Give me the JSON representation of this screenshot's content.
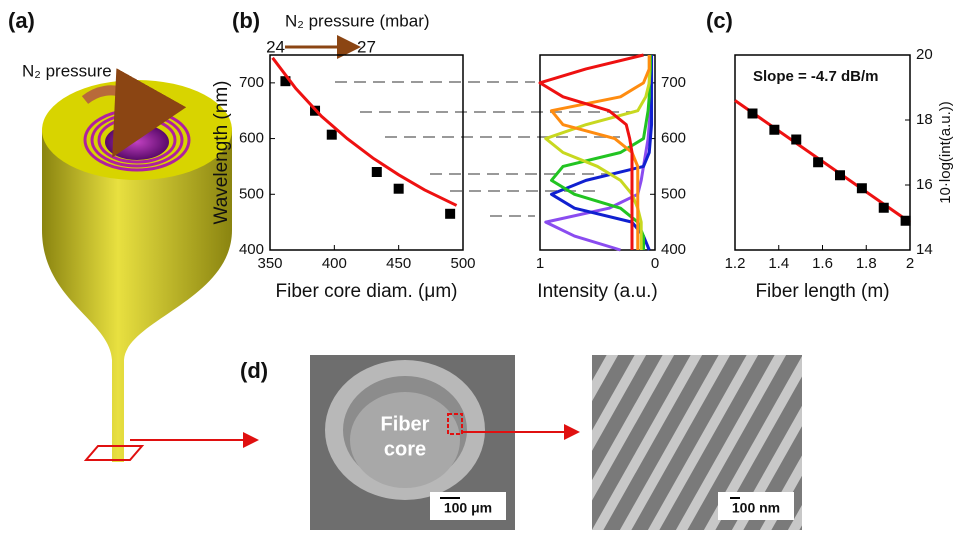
{
  "labels": {
    "panel_a": "(a)",
    "panel_b": "(b)",
    "panel_c": "(c)",
    "panel_d": "(d)",
    "pressure": "N₂ pressure",
    "fiber_core": "Fiber",
    "fiber_core_2": "core",
    "scale_um": "100 μm",
    "scale_nm": "100 nm"
  },
  "chart_data": [
    {
      "type": "scatter",
      "xlabel": "Fiber core diam. (μm)",
      "ylabel": "Wavelength (nm)",
      "annotations": [
        "N₂ pressure (mbar)",
        "24",
        "27"
      ],
      "xlim": [
        350,
        500
      ],
      "xticks": [
        350,
        400,
        450,
        500
      ],
      "ylim": [
        400,
        750
      ],
      "yticks": [
        400,
        500,
        600,
        700
      ],
      "series": [
        {
          "marker": "square",
          "color": "#000000",
          "x": [
            362,
            385,
            398,
            433,
            450,
            490
          ],
          "values": [
            703,
            650,
            607,
            540,
            510,
            465
          ]
        },
        {
          "marker": "line",
          "color": "#ee1111",
          "x": [
            352,
            370,
            390,
            410,
            430,
            450,
            470,
            495
          ],
          "values": [
            745,
            690,
            640,
            600,
            565,
            535,
            508,
            480
          ]
        }
      ]
    },
    {
      "type": "line",
      "xlabel": "Intensity (a.u.)",
      "xlim": [
        1,
        0
      ],
      "xticks": [
        1,
        0
      ],
      "ylim": [
        400,
        750
      ],
      "yticks": [
        400,
        500,
        600,
        700
      ],
      "y": [
        400,
        425,
        450,
        475,
        500,
        525,
        550,
        575,
        600,
        625,
        650,
        675,
        700,
        725,
        750
      ],
      "series": [
        {
          "color": "#8a4cf0",
          "values": [
            0.3,
            0.7,
            0.95,
            0.4,
            0.15,
            0.12,
            0.1,
            0.08,
            0.06,
            0.05,
            0.04,
            0.04,
            0.04,
            0.04,
            0.04
          ]
        },
        {
          "color": "#1020d0",
          "values": [
            0.05,
            0.1,
            0.2,
            0.7,
            0.9,
            0.6,
            0.1,
            0.05,
            0.04,
            0.03,
            0.03,
            0.03,
            0.03,
            0.03,
            0.03
          ]
        },
        {
          "color": "#22c422",
          "values": [
            0.1,
            0.1,
            0.15,
            0.3,
            0.7,
            0.9,
            0.8,
            0.3,
            0.1,
            0.08,
            0.06,
            0.05,
            0.05,
            0.04,
            0.04
          ]
        },
        {
          "color": "#c8d820",
          "values": [
            0.12,
            0.12,
            0.12,
            0.15,
            0.2,
            0.3,
            0.5,
            0.8,
            0.95,
            0.6,
            0.15,
            0.08,
            0.05,
            0.05,
            0.05
          ]
        },
        {
          "color": "#ff8c10",
          "values": [
            0.15,
            0.15,
            0.15,
            0.15,
            0.15,
            0.15,
            0.15,
            0.2,
            0.35,
            0.8,
            0.9,
            0.3,
            0.1,
            0.05,
            0.05
          ]
        },
        {
          "color": "#ee1111",
          "values": [
            0.2,
            0.2,
            0.2,
            0.2,
            0.2,
            0.2,
            0.2,
            0.2,
            0.22,
            0.25,
            0.4,
            0.8,
            1.0,
            0.6,
            0.1
          ]
        }
      ]
    },
    {
      "type": "scatter",
      "xlabel": "Fiber length (m)",
      "ylabel": "10·log(int(a.u.))",
      "annotation": "Slope = -4.7 dB/m",
      "xlim": [
        1.2,
        2
      ],
      "xticks": [
        1.2,
        1.4,
        1.6,
        1.8,
        2
      ],
      "ylim": [
        14,
        20
      ],
      "yticks": [
        14,
        16,
        18,
        20
      ],
      "series": [
        {
          "marker": "line",
          "color": "#ee1111",
          "x": [
            1.2,
            2
          ],
          "values": [
            18.6,
            14.85
          ]
        },
        {
          "marker": "square",
          "color": "#000000",
          "x": [
            1.28,
            1.38,
            1.48,
            1.58,
            1.68,
            1.78,
            1.88,
            1.98
          ],
          "values": [
            18.2,
            17.7,
            17.4,
            16.7,
            16.3,
            15.9,
            15.3,
            14.9
          ]
        }
      ]
    }
  ]
}
